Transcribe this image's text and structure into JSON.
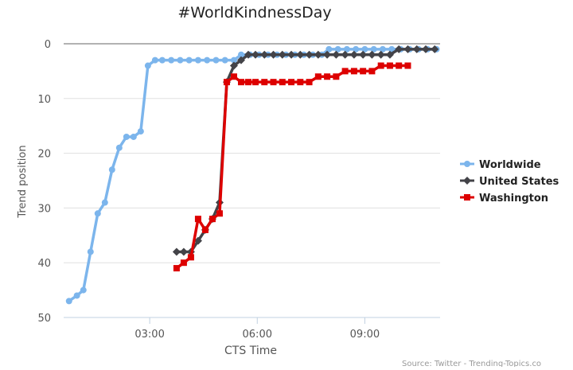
{
  "chart_data": {
    "type": "line",
    "title": "#WorldKindnessDay",
    "xlabel": "CTS Time",
    "ylabel": "Trend position",
    "x_unit": "hours",
    "xlim": [
      0.6,
      11.1
    ],
    "ylim": [
      0,
      50
    ],
    "y_reversed": true,
    "y_ticks": [
      0,
      10,
      20,
      30,
      40,
      50
    ],
    "x_ticks": [
      {
        "value": 3,
        "label": "03:00"
      },
      {
        "value": 6,
        "label": "06:00"
      },
      {
        "value": 9,
        "label": "09:00"
      }
    ],
    "grid": true,
    "legend_position": "right",
    "source": "Source: Twitter - Trending-Topics.co",
    "series": [
      {
        "name": "Worldwide",
        "color": "#7cb5ec",
        "marker": "circle",
        "points": [
          [
            0.75,
            47
          ],
          [
            0.97,
            46
          ],
          [
            1.15,
            45
          ],
          [
            1.35,
            38
          ],
          [
            1.55,
            31
          ],
          [
            1.75,
            29
          ],
          [
            1.95,
            23
          ],
          [
            2.15,
            19
          ],
          [
            2.35,
            17
          ],
          [
            2.55,
            17
          ],
          [
            2.75,
            16
          ],
          [
            2.95,
            4
          ],
          [
            3.15,
            3
          ],
          [
            3.35,
            3
          ],
          [
            3.6,
            3
          ],
          [
            3.85,
            3
          ],
          [
            4.1,
            3
          ],
          [
            4.35,
            3
          ],
          [
            4.6,
            3
          ],
          [
            4.85,
            3
          ],
          [
            5.1,
            3
          ],
          [
            5.35,
            3
          ],
          [
            5.55,
            2
          ],
          [
            5.8,
            2
          ],
          [
            6.05,
            2
          ],
          [
            6.3,
            2
          ],
          [
            6.55,
            2
          ],
          [
            6.8,
            2
          ],
          [
            7.05,
            2
          ],
          [
            7.3,
            2
          ],
          [
            7.55,
            2
          ],
          [
            7.8,
            2
          ],
          [
            8.0,
            1
          ],
          [
            8.25,
            1
          ],
          [
            8.5,
            1
          ],
          [
            8.75,
            1
          ],
          [
            9.0,
            1
          ],
          [
            9.25,
            1
          ],
          [
            9.5,
            1
          ],
          [
            9.75,
            1
          ],
          [
            10.0,
            1
          ],
          [
            10.25,
            1
          ],
          [
            10.5,
            1
          ],
          [
            10.75,
            1
          ],
          [
            11.0,
            1
          ]
        ]
      },
      {
        "name": "United States",
        "color": "#434348",
        "marker": "diamond",
        "points": [
          [
            3.75,
            38
          ],
          [
            3.95,
            38
          ],
          [
            4.15,
            38
          ],
          [
            4.35,
            36
          ],
          [
            4.55,
            34
          ],
          [
            4.75,
            32
          ],
          [
            4.95,
            29
          ],
          [
            5.15,
            7
          ],
          [
            5.35,
            4
          ],
          [
            5.55,
            3
          ],
          [
            5.75,
            2
          ],
          [
            5.95,
            2
          ],
          [
            6.2,
            2
          ],
          [
            6.45,
            2
          ],
          [
            6.7,
            2
          ],
          [
            6.95,
            2
          ],
          [
            7.2,
            2
          ],
          [
            7.45,
            2
          ],
          [
            7.7,
            2
          ],
          [
            7.95,
            2
          ],
          [
            8.2,
            2
          ],
          [
            8.45,
            2
          ],
          [
            8.7,
            2
          ],
          [
            8.95,
            2
          ],
          [
            9.2,
            2
          ],
          [
            9.45,
            2
          ],
          [
            9.7,
            2
          ],
          [
            9.95,
            1
          ],
          [
            10.2,
            1
          ],
          [
            10.45,
            1
          ],
          [
            10.7,
            1
          ],
          [
            10.95,
            1
          ]
        ]
      },
      {
        "name": "Washington",
        "color": "#dd0000",
        "marker": "square",
        "points": [
          [
            3.75,
            41
          ],
          [
            3.95,
            40
          ],
          [
            4.15,
            39
          ],
          [
            4.35,
            32
          ],
          [
            4.55,
            34
          ],
          [
            4.75,
            32
          ],
          [
            4.95,
            31
          ],
          [
            5.15,
            7
          ],
          [
            5.35,
            6
          ],
          [
            5.55,
            7
          ],
          [
            5.75,
            7
          ],
          [
            5.95,
            7
          ],
          [
            6.2,
            7
          ],
          [
            6.45,
            7
          ],
          [
            6.7,
            7
          ],
          [
            6.95,
            7
          ],
          [
            7.2,
            7
          ],
          [
            7.45,
            7
          ],
          [
            7.7,
            6
          ],
          [
            7.95,
            6
          ],
          [
            8.2,
            6
          ],
          [
            8.45,
            5
          ],
          [
            8.7,
            5
          ],
          [
            8.95,
            5
          ],
          [
            9.2,
            5
          ],
          [
            9.45,
            4
          ],
          [
            9.7,
            4
          ],
          [
            9.95,
            4
          ],
          [
            10.2,
            4
          ]
        ]
      }
    ]
  }
}
